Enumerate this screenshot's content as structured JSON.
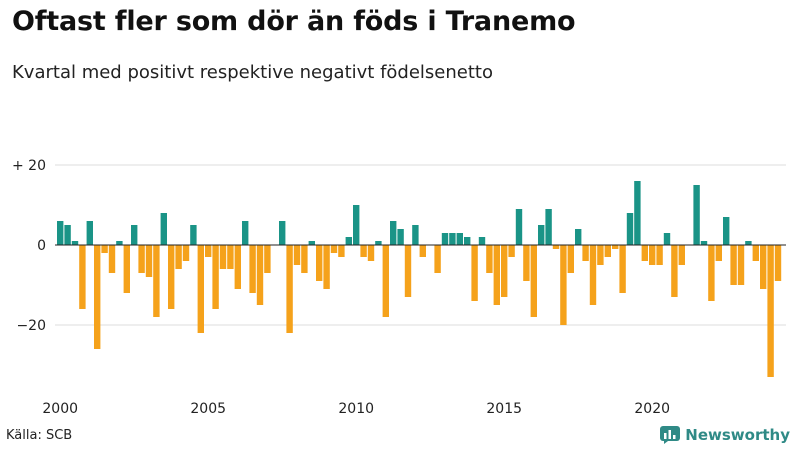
{
  "title": "Oftast fler som dör än föds i Tranemo",
  "subtitle": "Kvartal med positivt respektive negativt födelsenetto",
  "source": "Källa: SCB",
  "brand": "Newsworthy",
  "colors": {
    "positive": "#1a9487",
    "negative": "#f5a21b",
    "grid": "#dddddd",
    "axis": "#222222",
    "brand": "#2f8a86"
  },
  "chart_data": {
    "type": "bar",
    "title": "Oftast fler som dör än föds i Tranemo",
    "subtitle": "Kvartal med positivt respektive negativt födelsenetto",
    "xlabel": "",
    "ylabel": "",
    "start_year": 2000,
    "quarters_per_year": 4,
    "ylim": [
      -35,
      22
    ],
    "yticks": [
      {
        "value": 20,
        "label": "+ 20"
      },
      {
        "value": 0,
        "label": "0"
      },
      {
        "value": -20,
        "label": "−20"
      }
    ],
    "xticks": [
      {
        "year": 2000,
        "label": "2000"
      },
      {
        "year": 2005,
        "label": "2005"
      },
      {
        "year": 2010,
        "label": "2010"
      },
      {
        "year": 2015,
        "label": "2015"
      },
      {
        "year": 2020,
        "label": "2020"
      }
    ],
    "values": [
      6,
      5,
      1,
      -16,
      6,
      -26,
      -2,
      -7,
      1,
      -12,
      5,
      -7,
      -8,
      -18,
      8,
      -16,
      -6,
      -4,
      5,
      -22,
      -3,
      -16,
      -6,
      -6,
      -11,
      6,
      -12,
      -15,
      -7,
      0,
      6,
      -22,
      -5,
      -7,
      1,
      -9,
      -11,
      -2,
      -3,
      2,
      10,
      -3,
      -4,
      1,
      -18,
      6,
      4,
      -13,
      5,
      -3,
      0,
      -7,
      3,
      3,
      3,
      2,
      -14,
      2,
      -7,
      -15,
      -13,
      -3,
      9,
      -9,
      -18,
      5,
      9,
      -1,
      -20,
      -7,
      4,
      -4,
      -15,
      -5,
      -3,
      -1,
      -12,
      8,
      16,
      -4,
      -5,
      -5,
      3,
      -13,
      -5,
      0,
      15,
      1,
      -14,
      -4,
      7,
      -10,
      -10,
      1,
      -4,
      -11,
      -33,
      -9
    ]
  }
}
